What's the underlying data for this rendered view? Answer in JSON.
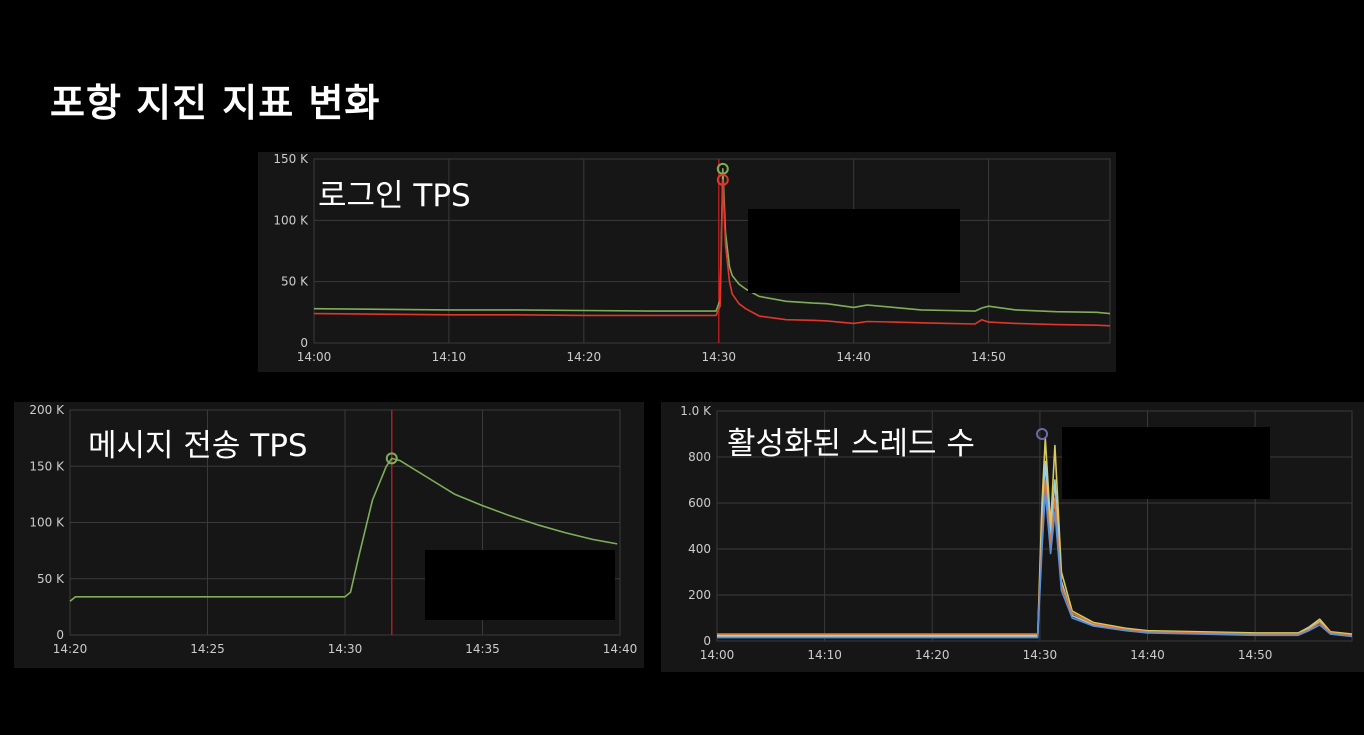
{
  "page": {
    "title": "포항 지진 지표 변화"
  },
  "colors": {
    "background": "#000000",
    "panel": "#161616",
    "grid": "#3a3a3a",
    "tick_text": "#cccccc",
    "green": "#7fae5a",
    "red": "#e0362c",
    "marker_line": "#b01c1c"
  },
  "chart_data": [
    {
      "id": "login",
      "type": "line",
      "title": "로그인 TPS",
      "xlabel": "",
      "ylabel": "",
      "x_range": [
        "14:00",
        "14:59"
      ],
      "xlim": [
        0,
        59
      ],
      "ylim": [
        0,
        150000
      ],
      "grid": true,
      "x_ticks": [
        {
          "v": 0,
          "label": "14:00"
        },
        {
          "v": 10,
          "label": "14:10"
        },
        {
          "v": 20,
          "label": "14:20"
        },
        {
          "v": 30,
          "label": "14:30"
        },
        {
          "v": 40,
          "label": "14:40"
        },
        {
          "v": 50,
          "label": "14:50"
        }
      ],
      "y_ticks": [
        {
          "v": 0,
          "label": "0"
        },
        {
          "v": 50000,
          "label": "50 K"
        },
        {
          "v": 100000,
          "label": "100 K"
        },
        {
          "v": 150000,
          "label": "150 K"
        }
      ],
      "series": [
        {
          "color": "#7fae5a",
          "x": [
            0,
            5,
            10,
            15,
            20,
            25,
            29.8,
            30.1,
            30.3,
            30.5,
            30.8,
            31,
            31.5,
            32,
            33,
            35,
            37,
            38,
            40,
            41,
            43,
            45,
            47,
            49,
            49.5,
            50,
            52,
            55,
            58,
            59
          ],
          "y": [
            28000,
            27500,
            27000,
            27000,
            26500,
            26000,
            26000,
            35000,
            142000,
            90000,
            62000,
            55000,
            48000,
            44000,
            38000,
            34000,
            32500,
            32000,
            29000,
            31000,
            29000,
            27000,
            26500,
            26000,
            28500,
            30000,
            27000,
            25500,
            25000,
            24000
          ]
        },
        {
          "color": "#e0362c",
          "x": [
            0,
            5,
            10,
            15,
            20,
            25,
            29.8,
            30.1,
            30.3,
            30.5,
            30.8,
            31,
            31.5,
            32,
            33,
            35,
            37,
            38,
            40,
            41,
            43,
            45,
            47,
            49,
            49.5,
            50,
            52,
            55,
            58,
            59
          ],
          "y": [
            24000,
            23500,
            23000,
            23000,
            22500,
            22500,
            22500,
            30000,
            133000,
            80000,
            50000,
            40000,
            32000,
            28000,
            22000,
            19000,
            18500,
            18000,
            16000,
            17500,
            17000,
            16500,
            16000,
            15500,
            19000,
            17000,
            16000,
            15000,
            14500,
            14000
          ]
        }
      ],
      "markers": [
        {
          "x": 30.3,
          "y": 142000,
          "color": "#7fae5a"
        },
        {
          "x": 30.3,
          "y": 133000,
          "color": "#e0362c"
        }
      ],
      "vline": 30.0
    },
    {
      "id": "message",
      "type": "line",
      "title": "메시지 전송 TPS",
      "xlabel": "",
      "ylabel": "",
      "x_range": [
        "14:20",
        "14:40"
      ],
      "xlim": [
        0,
        20
      ],
      "ylim": [
        0,
        200000
      ],
      "grid": true,
      "x_ticks": [
        {
          "v": 0,
          "label": "14:20"
        },
        {
          "v": 5,
          "label": "14:25"
        },
        {
          "v": 10,
          "label": "14:30"
        },
        {
          "v": 15,
          "label": "14:35"
        },
        {
          "v": 20,
          "label": "14:40"
        }
      ],
      "y_ticks": [
        {
          "v": 0,
          "label": "0"
        },
        {
          "v": 50000,
          "label": "50 K"
        },
        {
          "v": 100000,
          "label": "100 K"
        },
        {
          "v": 150000,
          "label": "150 K"
        },
        {
          "v": 200000,
          "label": "200 K"
        }
      ],
      "series": [
        {
          "color": "#7fae5a",
          "x": [
            0,
            0.2,
            2,
            5,
            8,
            10,
            10.2,
            10.5,
            11,
            11.5,
            11.7,
            12,
            13,
            14,
            15,
            16,
            17,
            18,
            19,
            19.9
          ],
          "y": [
            30000,
            34000,
            34000,
            34000,
            34000,
            34000,
            38000,
            70000,
            120000,
            150000,
            157000,
            155000,
            140000,
            125000,
            115000,
            106000,
            98000,
            91000,
            85000,
            81000
          ]
        }
      ],
      "markers": [
        {
          "x": 11.7,
          "y": 157000,
          "color": "#7fae5a"
        }
      ],
      "vline": 11.7
    },
    {
      "id": "threads",
      "type": "line",
      "title": "활성화된 스레드 수",
      "xlabel": "",
      "ylabel": "",
      "x_range": [
        "14:00",
        "14:59"
      ],
      "xlim": [
        0,
        59
      ],
      "ylim": [
        0,
        1000
      ],
      "grid": true,
      "x_ticks": [
        {
          "v": 0,
          "label": "14:00"
        },
        {
          "v": 10,
          "label": "14:10"
        },
        {
          "v": 20,
          "label": "14:20"
        },
        {
          "v": 30,
          "label": "14:30"
        },
        {
          "v": 40,
          "label": "14:40"
        },
        {
          "v": 50,
          "label": "14:50"
        }
      ],
      "y_ticks": [
        {
          "v": 0,
          "label": "0"
        },
        {
          "v": 200,
          "label": "200"
        },
        {
          "v": 400,
          "label": "400"
        },
        {
          "v": 600,
          "label": "600"
        },
        {
          "v": 800,
          "label": "800"
        },
        {
          "v": 1000,
          "label": "1.0 K"
        }
      ],
      "series": [
        {
          "color": "#d9c85a",
          "x": [
            0,
            10,
            20,
            29.8,
            30.2,
            30.5,
            31,
            31.4,
            32,
            33,
            35,
            38,
            40,
            45,
            50,
            54,
            55,
            56,
            57,
            59
          ],
          "y": [
            25,
            25,
            25,
            25,
            600,
            880,
            500,
            850,
            300,
            130,
            80,
            55,
            45,
            40,
            35,
            35,
            60,
            95,
            40,
            30
          ]
        },
        {
          "color": "#9ad0e0",
          "x": [
            0,
            10,
            20,
            29.8,
            30.2,
            30.5,
            31,
            31.4,
            32,
            33,
            35,
            38,
            40,
            45,
            50,
            54,
            55,
            56,
            57,
            59
          ],
          "y": [
            20,
            20,
            20,
            20,
            500,
            780,
            450,
            700,
            260,
            110,
            70,
            50,
            40,
            35,
            30,
            30,
            55,
            85,
            35,
            25
          ]
        },
        {
          "color": "#e07a3a",
          "x": [
            0,
            10,
            20,
            29.8,
            30.2,
            30.5,
            31,
            31.4,
            32,
            33,
            35,
            38,
            40,
            45,
            50,
            54,
            55,
            56,
            57,
            59
          ],
          "y": [
            30,
            30,
            30,
            30,
            450,
            700,
            420,
            620,
            240,
            120,
            75,
            50,
            40,
            35,
            30,
            30,
            50,
            80,
            35,
            25
          ]
        },
        {
          "color": "#5a8fd8",
          "x": [
            0,
            10,
            20,
            29.8,
            30.2,
            30.5,
            31,
            31.4,
            32,
            33,
            35,
            38,
            40,
            45,
            50,
            54,
            55,
            56,
            57,
            59
          ],
          "y": [
            15,
            15,
            15,
            15,
            400,
            650,
            380,
            560,
            220,
            100,
            65,
            45,
            35,
            30,
            25,
            25,
            45,
            70,
            30,
            20
          ]
        }
      ],
      "markers": [
        {
          "x": 30.2,
          "y": 900,
          "color": "#6a6aa8"
        }
      ],
      "vline": null
    }
  ]
}
